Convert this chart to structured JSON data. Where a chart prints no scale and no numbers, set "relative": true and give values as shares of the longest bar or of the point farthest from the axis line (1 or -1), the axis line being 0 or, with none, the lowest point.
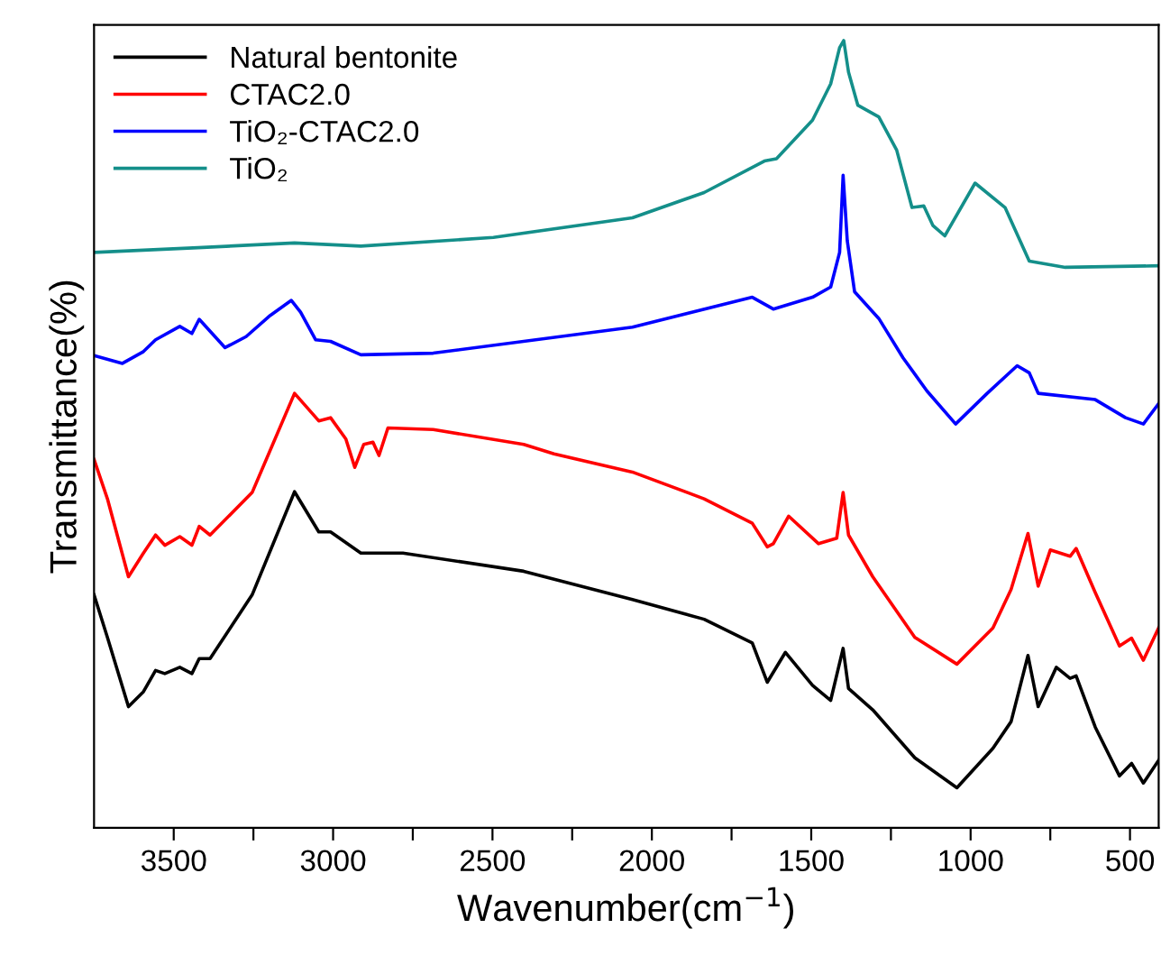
{
  "chart_data": {
    "type": "line",
    "relative": true,
    "xlabel": "Wavenumber(cm$^{−1}$)",
    "ylabel": "Transmittance(%)",
    "xlim": [
      3750,
      410
    ],
    "xticks": [
      3500,
      {
        "value": 3250,
        "label": null
      },
      3000,
      {
        "value": 2750,
        "label": null
      },
      2500,
      {
        "value": 2250,
        "label": null
      },
      2000,
      {
        "value": 1750,
        "label": null
      },
      1500,
      {
        "value": 1250,
        "label": null
      },
      1000,
      {
        "value": 750,
        "label": null
      },
      500
    ],
    "legend": "top left",
    "grid": false,
    "line_style": "solid",
    "marker": "none",
    "series": [
      {
        "name": "Natural bentonite",
        "color": "#000000",
        "x": [
          3750,
          3708,
          3642,
          3595,
          3557,
          3528,
          3481,
          3443,
          3420,
          3386,
          3254,
          3121,
          3045,
          3008,
          2913,
          2781,
          2402,
          2061,
          1836,
          1685,
          1638,
          1581,
          1496,
          1439,
          1400,
          1383,
          1307,
          1175,
          1043,
          930,
          873,
          820,
          788,
          731,
          688,
          669,
          609,
          533,
          495,
          458,
          410
        ],
        "values": [
          0.296,
          0.242,
          0.154,
          0.173,
          0.2,
          0.196,
          0.204,
          0.196,
          0.215,
          0.215,
          0.296,
          0.427,
          0.376,
          0.376,
          0.349,
          0.349,
          0.326,
          0.29,
          0.265,
          0.235,
          0.185,
          0.223,
          0.181,
          0.162,
          0.228,
          0.177,
          0.15,
          0.089,
          0.051,
          0.101,
          0.135,
          0.219,
          0.154,
          0.204,
          0.19,
          0.193,
          0.128,
          0.066,
          0.082,
          0.057,
          0.086
        ]
      },
      {
        "name": "CTAC2.0",
        "color": "#ff0000",
        "x": [
          3750,
          3708,
          3642,
          3595,
          3557,
          3528,
          3481,
          3443,
          3420,
          3386,
          3254,
          3121,
          3045,
          3008,
          2960,
          2932,
          2904,
          2875,
          2856,
          2828,
          2686,
          2402,
          2307,
          2061,
          1836,
          1685,
          1638,
          1619,
          1571,
          1477,
          1420,
          1400,
          1383,
          1307,
          1175,
          1043,
          930,
          873,
          820,
          788,
          750,
          688,
          669,
          609,
          533,
          495,
          458,
          410
        ],
        "values": [
          0.468,
          0.418,
          0.319,
          0.349,
          0.372,
          0.359,
          0.37,
          0.359,
          0.383,
          0.372,
          0.426,
          0.552,
          0.517,
          0.521,
          0.494,
          0.458,
          0.487,
          0.49,
          0.473,
          0.508,
          0.506,
          0.487,
          0.475,
          0.452,
          0.418,
          0.387,
          0.357,
          0.361,
          0.396,
          0.361,
          0.368,
          0.426,
          0.372,
          0.319,
          0.242,
          0.208,
          0.254,
          0.303,
          0.374,
          0.307,
          0.353,
          0.345,
          0.355,
          0.299,
          0.231,
          0.241,
          0.213,
          0.254
        ]
      },
      {
        "name": "TiO₂-CTAC2.0",
        "color": "#0000ff",
        "x": [
          3750,
          3661,
          3595,
          3557,
          3481,
          3443,
          3420,
          3339,
          3273,
          3197,
          3131,
          3102,
          3055,
          3008,
          2913,
          2686,
          2061,
          1685,
          1619,
          1496,
          1439,
          1411,
          1400,
          1387,
          1364,
          1288,
          1212,
          1137,
          1047,
          948,
          854,
          816,
          788,
          609,
          514,
          458,
          410
        ],
        "values": [
          0.6,
          0.59,
          0.605,
          0.62,
          0.637,
          0.628,
          0.646,
          0.61,
          0.624,
          0.651,
          0.67,
          0.655,
          0.62,
          0.618,
          0.601,
          0.603,
          0.636,
          0.674,
          0.659,
          0.674,
          0.687,
          0.731,
          0.829,
          0.746,
          0.681,
          0.647,
          0.597,
          0.555,
          0.513,
          0.552,
          0.587,
          0.578,
          0.552,
          0.544,
          0.521,
          0.513,
          0.539
        ]
      },
      {
        "name": "TiO₂",
        "color": "#148f8a",
        "x": [
          3750,
          3424,
          3121,
          2913,
          2497,
          2061,
          1836,
          1647,
          1609,
          1496,
          1439,
          1411,
          1398,
          1383,
          1354,
          1288,
          1232,
          1184,
          1147,
          1118,
          1081,
          986,
          892,
          816,
          703,
          410
        ],
        "values": [
          0.731,
          0.737,
          0.743,
          0.739,
          0.75,
          0.775,
          0.807,
          0.847,
          0.85,
          0.899,
          0.945,
          0.991,
          1.0,
          0.96,
          0.918,
          0.903,
          0.861,
          0.788,
          0.79,
          0.765,
          0.752,
          0.819,
          0.788,
          0.72,
          0.712,
          0.714
        ]
      }
    ]
  }
}
